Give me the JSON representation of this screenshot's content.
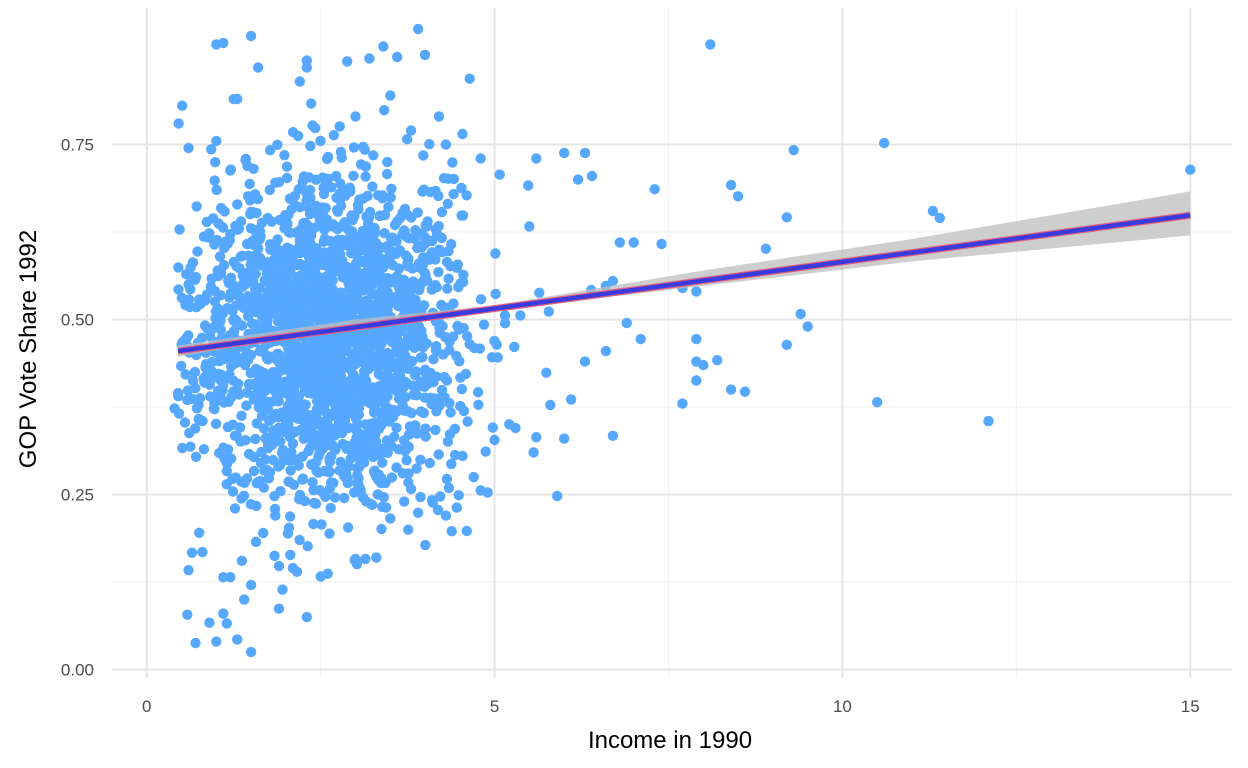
{
  "chart_data": {
    "type": "scatter",
    "title": "",
    "xlabel": "Income in 1990",
    "ylabel": "GOP Vote Share 1992",
    "xlim": [
      -0.5,
      15.6
    ],
    "ylim": [
      -0.012,
      0.945
    ],
    "x_ticks": [
      0,
      5,
      10,
      15
    ],
    "x_tick_labels": [
      "0",
      "5",
      "10",
      "15"
    ],
    "y_ticks": [
      0,
      0.25,
      0.5,
      0.75
    ],
    "y_tick_labels": [
      "0.00",
      "0.25",
      "0.50",
      "0.75"
    ],
    "grid": true,
    "legend": "none",
    "colors": {
      "points": "#56a8ff",
      "fit_line": "#3a3adf",
      "fit_line_edge": "#e0607e",
      "confidence_band": "#bdbdbd",
      "grid_major": "#e6e6e6",
      "grid_minor": "#f2f2f2"
    },
    "fit_line": {
      "x": [
        0.45,
        15.0
      ],
      "y": [
        0.455,
        0.649
      ]
    },
    "confidence_band": {
      "x": [
        0.45,
        3.0,
        5.0,
        8.0,
        11.0,
        15.0
      ],
      "lower": [
        0.447,
        0.49,
        0.513,
        0.548,
        0.583,
        0.62
      ],
      "upper": [
        0.463,
        0.5,
        0.52,
        0.57,
        0.615,
        0.683
      ]
    },
    "cluster": {
      "description_free": true,
      "count": 2200,
      "x_mean": 2.6,
      "x_sd": 0.95,
      "x_min": 0.45,
      "x_max": 6.5,
      "y_mean": 0.485,
      "y_sd": 0.115,
      "y_min": 0.02,
      "y_max": 0.92,
      "seed": 7
    },
    "points": [
      [
        8.1,
        0.893
      ],
      [
        3.9,
        0.915
      ],
      [
        4.0,
        0.878
      ],
      [
        3.6,
        0.875
      ],
      [
        3.2,
        0.873
      ],
      [
        3.4,
        0.89
      ],
      [
        1.0,
        0.893
      ],
      [
        1.1,
        0.895
      ],
      [
        1.5,
        0.905
      ],
      [
        1.6,
        0.86
      ],
      [
        2.3,
        0.87
      ],
      [
        2.3,
        0.86
      ],
      [
        2.2,
        0.84
      ],
      [
        3.5,
        0.82
      ],
      [
        1.3,
        0.815
      ],
      [
        0.6,
        0.745
      ],
      [
        1.0,
        0.755
      ],
      [
        3.0,
        0.79
      ],
      [
        4.2,
        0.79
      ],
      [
        4.3,
        0.75
      ],
      [
        3.8,
        0.77
      ],
      [
        4.8,
        0.73
      ],
      [
        5.6,
        0.73
      ],
      [
        6.0,
        0.738
      ],
      [
        6.3,
        0.738
      ],
      [
        7.3,
        0.686
      ],
      [
        6.4,
        0.705
      ],
      [
        6.2,
        0.7
      ],
      [
        9.3,
        0.742
      ],
      [
        10.6,
        0.752
      ],
      [
        15.0,
        0.714
      ],
      [
        8.4,
        0.692
      ],
      [
        8.5,
        0.676
      ],
      [
        11.3,
        0.655
      ],
      [
        11.4,
        0.645
      ],
      [
        9.2,
        0.646
      ],
      [
        8.9,
        0.601
      ],
      [
        7.4,
        0.608
      ],
      [
        6.8,
        0.61
      ],
      [
        7.0,
        0.61
      ],
      [
        7.7,
        0.545
      ],
      [
        7.9,
        0.54
      ],
      [
        6.6,
        0.548
      ],
      [
        6.7,
        0.555
      ],
      [
        6.9,
        0.495
      ],
      [
        7.1,
        0.472
      ],
      [
        7.9,
        0.472
      ],
      [
        9.4,
        0.508
      ],
      [
        9.5,
        0.49
      ],
      [
        9.2,
        0.464
      ],
      [
        7.9,
        0.44
      ],
      [
        8.0,
        0.435
      ],
      [
        8.2,
        0.442
      ],
      [
        7.9,
        0.413
      ],
      [
        8.4,
        0.4
      ],
      [
        8.6,
        0.397
      ],
      [
        7.7,
        0.38
      ],
      [
        10.5,
        0.382
      ],
      [
        12.1,
        0.355
      ],
      [
        6.7,
        0.334
      ],
      [
        6.6,
        0.455
      ],
      [
        6.3,
        0.44
      ],
      [
        6.1,
        0.386
      ],
      [
        6.0,
        0.33
      ],
      [
        5.9,
        0.248
      ],
      [
        5.8,
        0.378
      ],
      [
        5.6,
        0.332
      ],
      [
        5.3,
        0.345
      ],
      [
        5.0,
        0.328
      ],
      [
        4.9,
        0.253
      ],
      [
        4.8,
        0.256
      ],
      [
        4.7,
        0.275
      ],
      [
        4.6,
        0.198
      ],
      [
        4.3,
        0.22
      ],
      [
        4.1,
        0.242
      ],
      [
        0.4,
        0.373
      ],
      [
        0.45,
        0.395
      ],
      [
        0.5,
        0.464
      ],
      [
        0.55,
        0.353
      ],
      [
        0.6,
        0.142
      ],
      [
        0.65,
        0.167
      ],
      [
        0.7,
        0.038
      ],
      [
        0.8,
        0.168
      ],
      [
        0.9,
        0.067
      ],
      [
        1.0,
        0.04
      ],
      [
        1.1,
        0.08
      ],
      [
        1.15,
        0.066
      ],
      [
        1.3,
        0.043
      ],
      [
        1.5,
        0.025
      ],
      [
        1.4,
        0.1
      ],
      [
        1.5,
        0.121
      ],
      [
        1.2,
        0.132
      ],
      [
        1.1,
        0.132
      ],
      [
        1.9,
        0.087
      ],
      [
        2.3,
        0.075
      ],
      [
        1.9,
        0.148
      ],
      [
        2.1,
        0.145
      ],
      [
        2.5,
        0.133
      ],
      [
        2.6,
        0.137
      ],
      [
        3.0,
        0.158
      ],
      [
        3.3,
        0.16
      ],
      [
        3.5,
        0.216
      ],
      [
        3.7,
        0.24
      ],
      [
        3.8,
        0.258
      ],
      [
        3.9,
        0.224
      ]
    ]
  }
}
